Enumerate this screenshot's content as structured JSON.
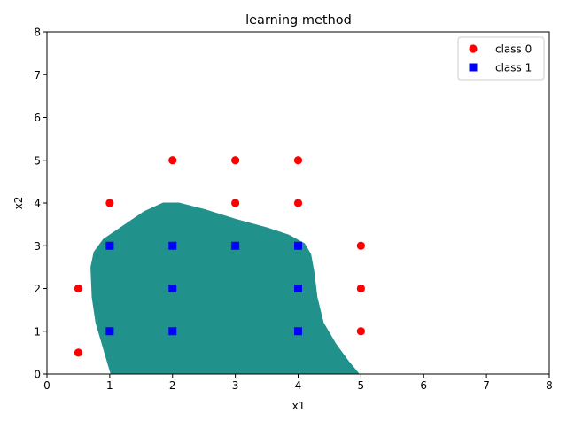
{
  "chart_data": {
    "type": "scatter",
    "title": "learning method",
    "xlabel": "x1",
    "ylabel": "x2",
    "xlim": [
      0,
      8
    ],
    "ylim": [
      0,
      8
    ],
    "xticks": [
      0,
      1,
      2,
      3,
      4,
      5,
      6,
      7,
      8
    ],
    "yticks": [
      0,
      1,
      2,
      3,
      4,
      5,
      6,
      7,
      8
    ],
    "grid": false,
    "legend_position": "top-right",
    "decision_region": {
      "label": "class 1 region",
      "color": "#21918c",
      "boundary": [
        [
          1.02,
          0.0
        ],
        [
          0.9,
          0.6
        ],
        [
          0.78,
          1.2
        ],
        [
          0.72,
          1.8
        ],
        [
          0.7,
          2.5
        ],
        [
          0.75,
          2.85
        ],
        [
          0.9,
          3.15
        ],
        [
          1.2,
          3.45
        ],
        [
          1.55,
          3.8
        ],
        [
          1.85,
          4.0
        ],
        [
          2.1,
          4.0
        ],
        [
          2.5,
          3.85
        ],
        [
          3.0,
          3.62
        ],
        [
          3.5,
          3.42
        ],
        [
          3.85,
          3.25
        ],
        [
          4.1,
          3.05
        ],
        [
          4.2,
          2.8
        ],
        [
          4.25,
          2.4
        ],
        [
          4.3,
          1.8
        ],
        [
          4.4,
          1.2
        ],
        [
          4.6,
          0.7
        ],
        [
          4.8,
          0.3
        ],
        [
          4.97,
          0.0
        ]
      ]
    },
    "series": [
      {
        "name": "class 0",
        "marker": "circle",
        "color": "#ff0000",
        "points": [
          [
            0.5,
            0.5
          ],
          [
            0.5,
            2
          ],
          [
            1,
            4
          ],
          [
            2,
            5
          ],
          [
            3,
            5
          ],
          [
            4,
            5
          ],
          [
            3,
            4
          ],
          [
            4,
            4
          ],
          [
            5,
            3
          ],
          [
            5,
            2
          ],
          [
            5,
            1
          ]
        ]
      },
      {
        "name": "class 1",
        "marker": "square",
        "color": "#0000ff",
        "points": [
          [
            1,
            1
          ],
          [
            1,
            3
          ],
          [
            2,
            1
          ],
          [
            2,
            2
          ],
          [
            2,
            3
          ],
          [
            3,
            3
          ],
          [
            4,
            1
          ],
          [
            4,
            2
          ],
          [
            4,
            3
          ]
        ]
      }
    ]
  }
}
